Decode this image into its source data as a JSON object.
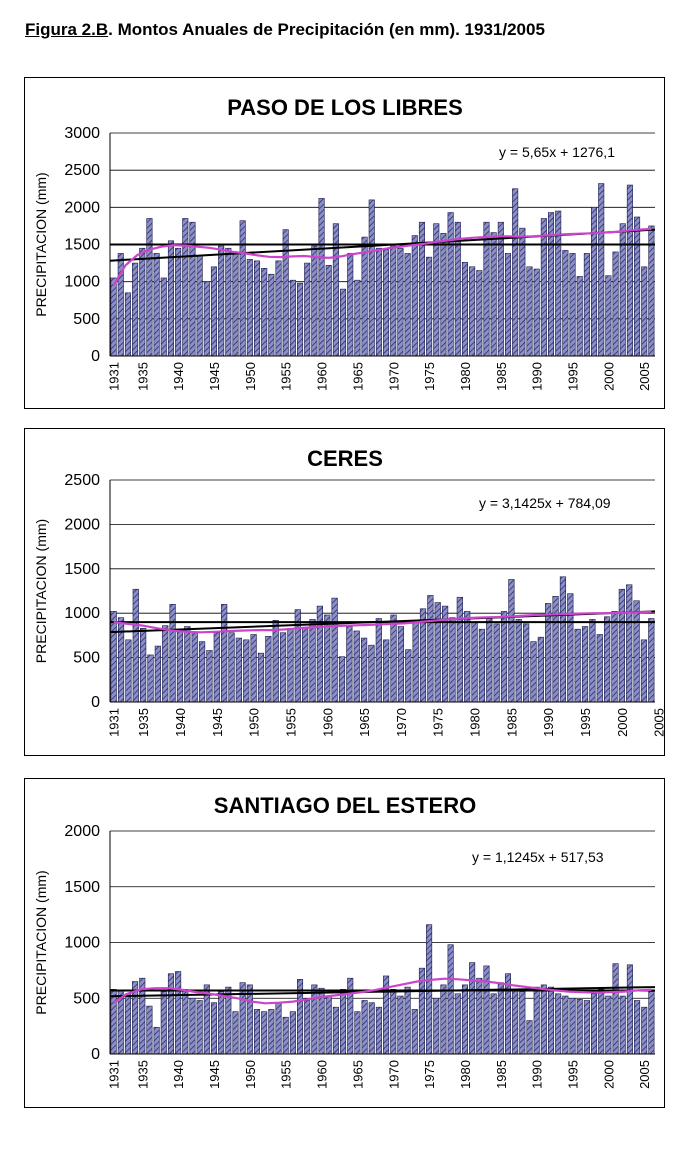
{
  "figure": {
    "label": "Figura 2.B",
    "title": ". Montos Anuales de Precipitación (en mm). 1931/2005"
  },
  "colors": {
    "bar_fill": "#8b8fc6",
    "hatch": "#2a2d6e",
    "moving_avg": "#cc44cc",
    "lines": "#000000"
  },
  "chart_data": [
    {
      "type": "bar",
      "title": "PASO DE LOS LIBRES",
      "ylabel": "PRECIPITACION (mm)",
      "xlabel": "",
      "ylim": [
        0,
        3000
      ],
      "yticks": [
        0,
        500,
        1000,
        1500,
        2000,
        2500,
        3000
      ],
      "xtick_labels": [
        "1931",
        "1935",
        "1940",
        "1945",
        "1950",
        "1955",
        "1960",
        "1965",
        "1970",
        "1975",
        "1980",
        "1985",
        "1990",
        "1995",
        "2000",
        "2005"
      ],
      "equation": "y = 5,65x + 1276,1",
      "mean": 1500,
      "trend": [
        1282,
        1700
      ],
      "years_start": 1931,
      "values": [
        1050,
        1380,
        850,
        1250,
        1450,
        1850,
        1380,
        1050,
        1550,
        1450,
        1850,
        1800,
        1350,
        1000,
        1200,
        1480,
        1450,
        1380,
        1820,
        1300,
        1280,
        1180,
        1100,
        1280,
        1700,
        1020,
        980,
        1250,
        1480,
        2120,
        1220,
        1780,
        900,
        1380,
        1020,
        1600,
        2100,
        1450,
        1430,
        1480,
        1450,
        1380,
        1620,
        1800,
        1330,
        1780,
        1650,
        1930,
        1800,
        1260,
        1200,
        1150,
        1800,
        1660,
        1800,
        1380,
        2250,
        1720,
        1200,
        1170,
        1850,
        1930,
        1950,
        1420,
        1380,
        1070,
        1380,
        2000,
        2320,
        1080,
        1400,
        1780,
        2300,
        1870,
        1200,
        1750
      ],
      "moving_avg": [
        950,
        1220,
        1360,
        1430,
        1470,
        1490,
        1485,
        1470,
        1455,
        1430,
        1400,
        1380,
        1355,
        1335,
        1330,
        1340,
        1345,
        1330,
        1320,
        1340,
        1370,
        1395,
        1420,
        1450,
        1470,
        1490,
        1510,
        1535,
        1555,
        1575,
        1590,
        1600,
        1610,
        1610,
        1605,
        1610,
        1620,
        1630,
        1640,
        1645,
        1650,
        1660,
        1670,
        1685,
        1700,
        1710
      ]
    },
    {
      "type": "bar",
      "title": "CERES",
      "ylabel": "PRECIPITACION (mm)",
      "xlabel": "",
      "ylim": [
        0,
        2500
      ],
      "yticks": [
        0,
        500,
        1000,
        1500,
        2000,
        2500
      ],
      "xtick_labels": [
        "1931",
        "1935",
        "1940",
        "1945",
        "1950",
        "1955",
        "1960",
        "1965",
        "1970",
        "1975",
        "1980",
        "1985",
        "1990",
        "1995",
        "2000",
        "2005"
      ],
      "equation": "y = 3,1425x + 784,09",
      "mean": 900,
      "trend": [
        787,
        1020
      ],
      "years_start": 1931,
      "values": [
        1020,
        950,
        700,
        1270,
        830,
        530,
        630,
        860,
        1100,
        820,
        850,
        780,
        680,
        580,
        780,
        1100,
        780,
        720,
        700,
        760,
        550,
        740,
        920,
        780,
        830,
        1040,
        840,
        930,
        1080,
        980,
        1170,
        510,
        850,
        800,
        720,
        640,
        940,
        700,
        980,
        850,
        590,
        900,
        1050,
        1200,
        1120,
        1080,
        950,
        1180,
        1020,
        900,
        820,
        940,
        880,
        1020,
        1380,
        930,
        880,
        680,
        730,
        1110,
        1190,
        1410,
        1220,
        820,
        850,
        930,
        760,
        960,
        1020,
        1270,
        1320,
        1140,
        700,
        940
      ],
      "moving_avg": [
        900,
        880,
        860,
        830,
        805,
        790,
        785,
        790,
        800,
        805,
        810,
        810,
        820,
        835,
        845,
        855,
        860,
        865,
        870,
        880,
        885,
        900,
        915,
        930,
        940,
        950,
        955,
        960,
        970,
        980,
        985,
        990,
        995,
        1000,
        1000,
        1005,
        1010,
        1015
      ]
    },
    {
      "type": "bar",
      "title": "SANTIAGO DEL ESTERO",
      "ylabel": "PRECIPITACION (mm)",
      "xlabel": "",
      "ylim": [
        0,
        2000
      ],
      "yticks": [
        0,
        500,
        1000,
        1500,
        2000
      ],
      "xtick_labels": [
        "1931",
        "1935",
        "1940",
        "1945",
        "1950",
        "1955",
        "1960",
        "1965",
        "1970",
        "1975",
        "1980",
        "1985",
        "1990",
        "1995",
        "2000",
        "2005"
      ],
      "equation": "y = 1,1245x + 517,53",
      "mean": 570,
      "trend": [
        518,
        600
      ],
      "years_start": 1931,
      "values": [
        580,
        570,
        540,
        650,
        680,
        430,
        240,
        560,
        720,
        740,
        580,
        500,
        480,
        620,
        460,
        560,
        600,
        380,
        640,
        620,
        400,
        380,
        400,
        460,
        330,
        380,
        670,
        480,
        620,
        590,
        520,
        420,
        580,
        680,
        380,
        480,
        460,
        420,
        700,
        580,
        520,
        600,
        400,
        770,
        1160,
        500,
        620,
        980,
        540,
        620,
        820,
        680,
        790,
        540,
        640,
        720,
        580,
        560,
        300,
        600,
        620,
        600,
        540,
        520,
        500,
        490,
        480,
        540,
        580,
        520,
        810,
        520,
        800,
        480,
        420,
        560
      ],
      "moving_avg": [
        460,
        540,
        580,
        590,
        590,
        575,
        555,
        540,
        520,
        500,
        470,
        455,
        460,
        470,
        490,
        510,
        525,
        540,
        555,
        575,
        600,
        625,
        650,
        665,
        675,
        670,
        660,
        650,
        635,
        615,
        600,
        585,
        570,
        560,
        555,
        550,
        555,
        560,
        570,
        575
      ]
    }
  ]
}
